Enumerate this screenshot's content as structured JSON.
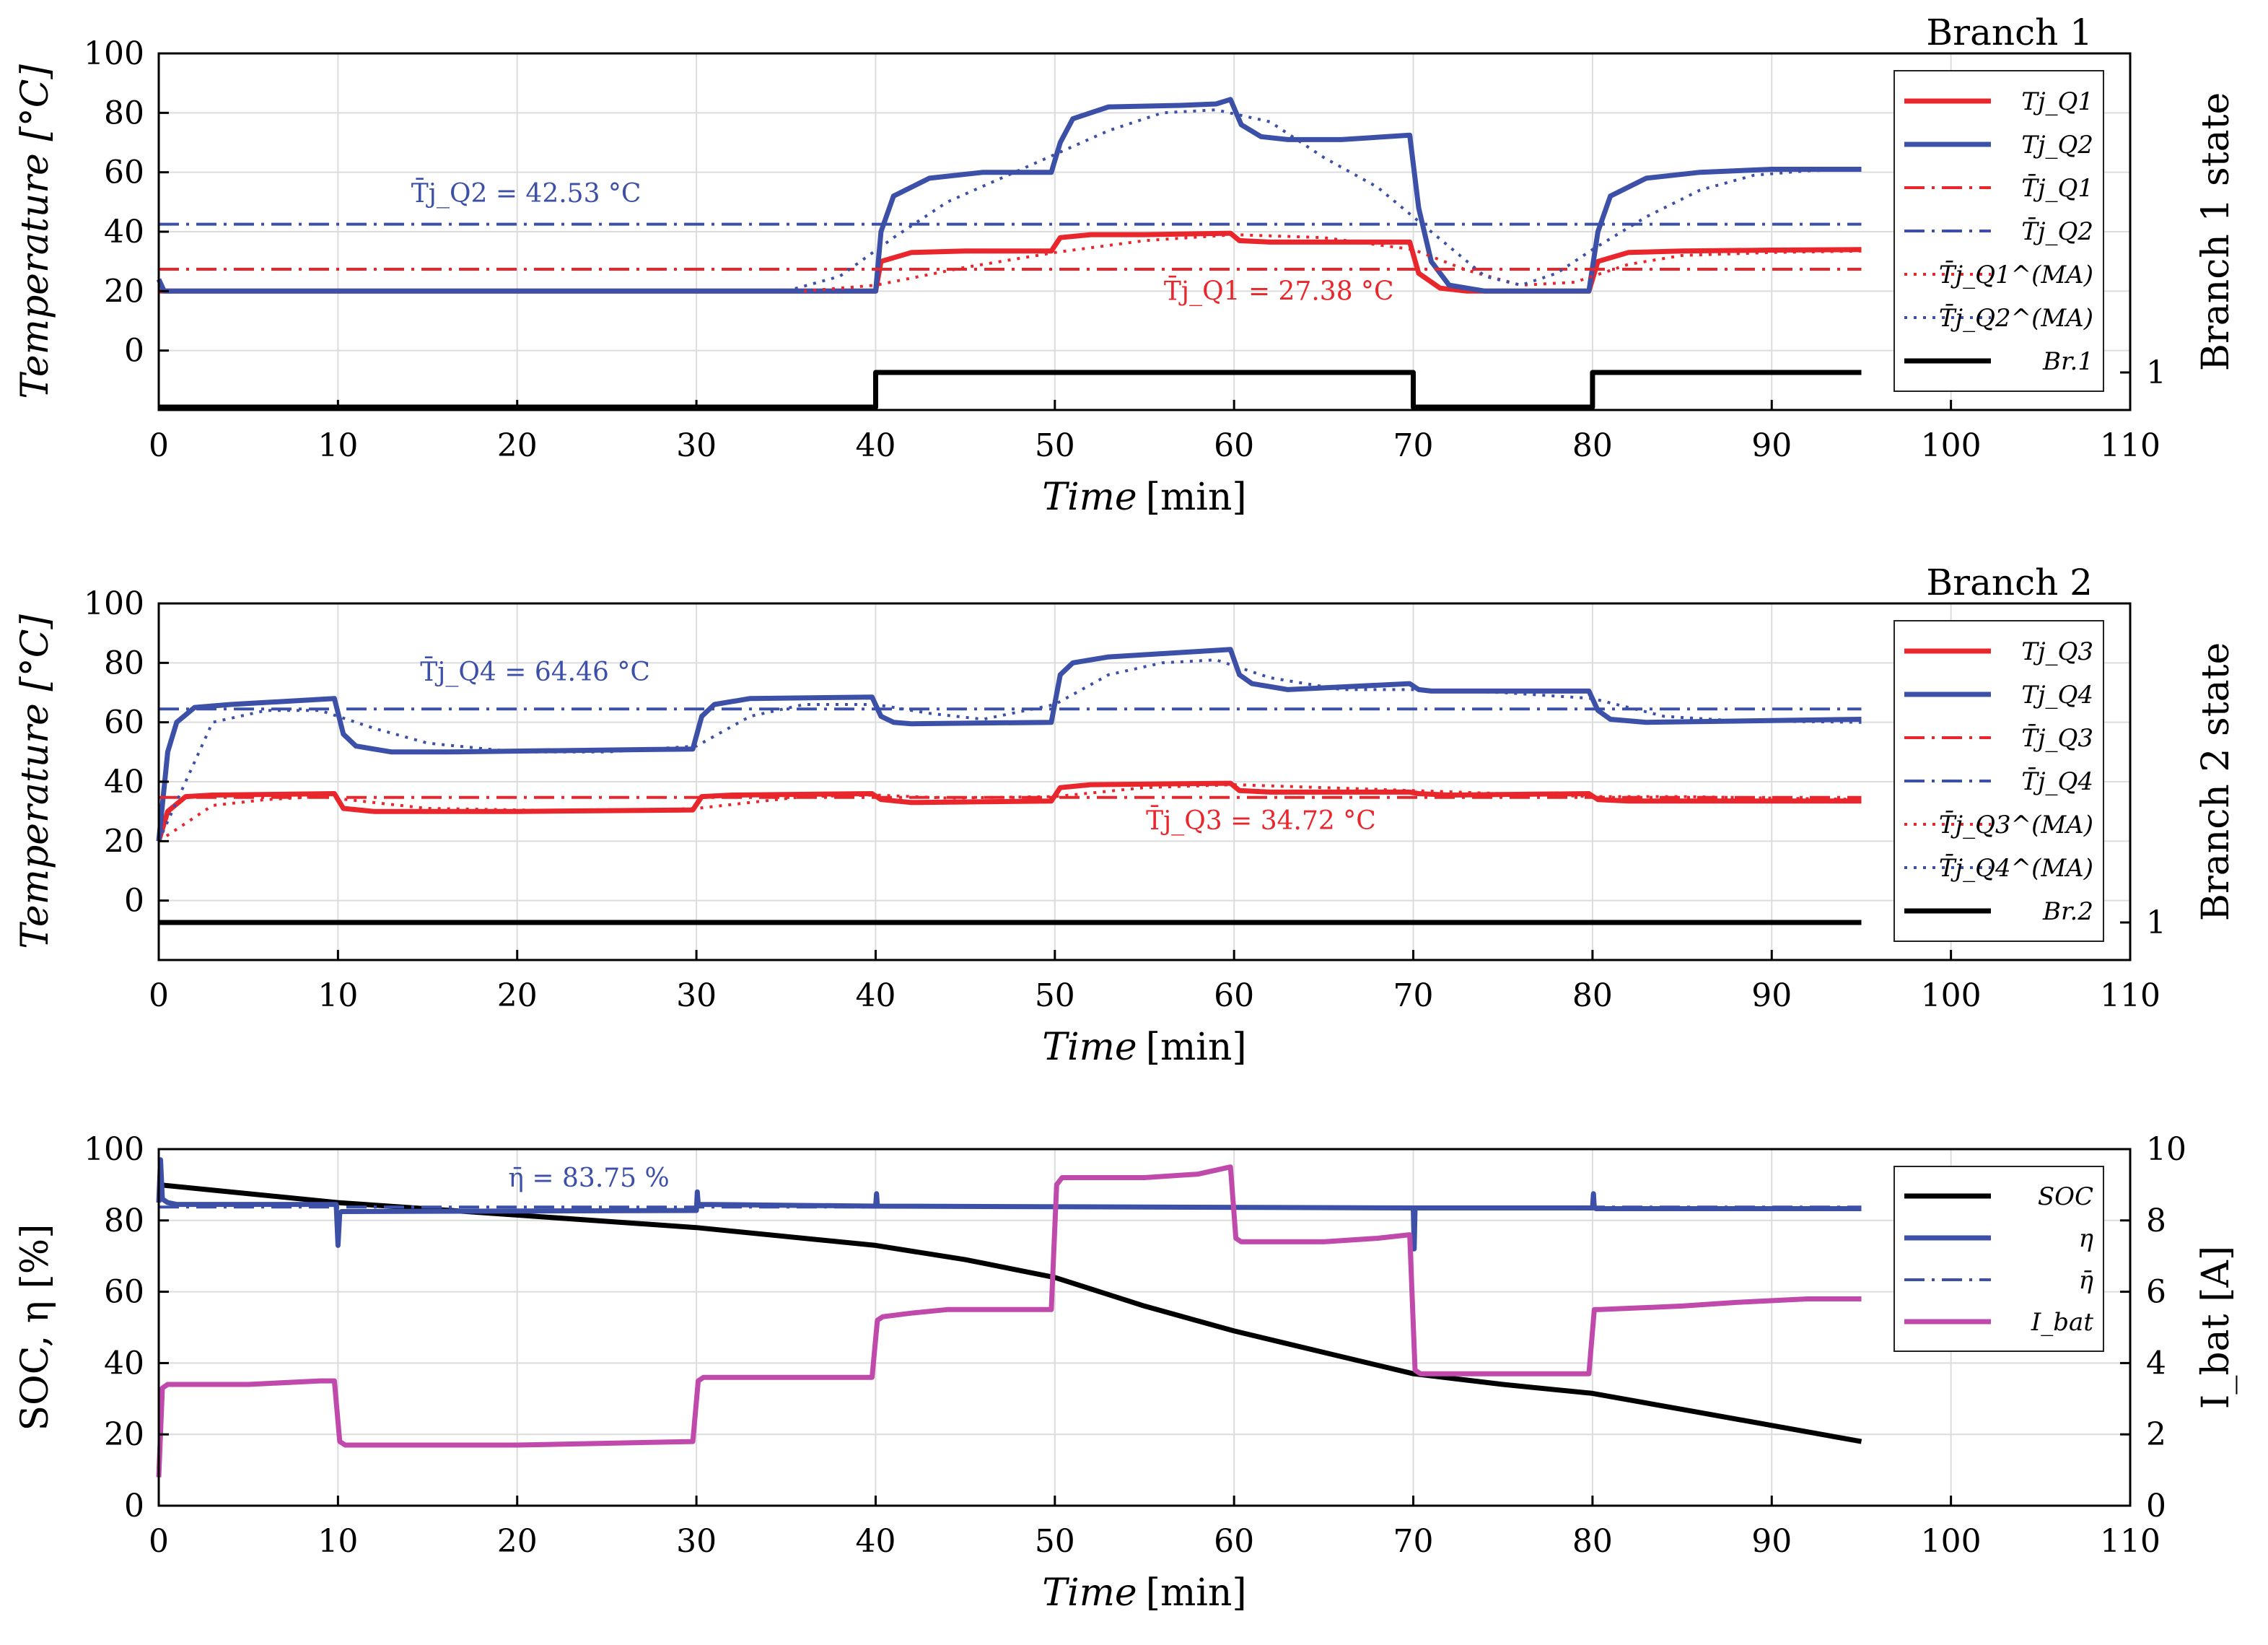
{
  "colors": {
    "red": "#e8262b",
    "blue": "#3c50a8",
    "black": "#000000",
    "magenta": "#c04aab",
    "grid": "#dcdcdc"
  },
  "chart_data": [
    {
      "type": "line",
      "title": "Branch 1",
      "xlabel": "Time",
      "xunit": "[min]",
      "ylabel": "Temperature [°C]",
      "y2label": "Branch 1 state",
      "xlim": [
        0,
        110
      ],
      "ylim": [
        -20,
        100
      ],
      "xticks": [
        0,
        10,
        20,
        30,
        40,
        50,
        60,
        70,
        80,
        90,
        100,
        110
      ],
      "yticks": [
        0,
        20,
        40,
        60,
        80,
        100
      ],
      "y2ticks": [
        "1"
      ],
      "series": [
        {
          "name": "Tj_Q1",
          "label": "Tj_Q1",
          "color": "#e8262b",
          "style": "solid",
          "x": [
            0,
            0.3,
            40,
            40.3,
            42,
            45,
            49.8,
            50.3,
            52,
            55,
            59.8,
            60.3,
            62,
            65,
            69.8,
            70.3,
            71.5,
            73,
            79.8,
            80.3,
            82,
            85,
            90,
            95
          ],
          "y": [
            20,
            20,
            20,
            30,
            33,
            33.5,
            33.5,
            38,
            39,
            39,
            39.5,
            37,
            36.5,
            36.5,
            36.5,
            26,
            21,
            20,
            20,
            30,
            33,
            33.5,
            33.8,
            34
          ]
        },
        {
          "name": "Tj_Q2",
          "label": "Tj_Q2",
          "color": "#3c50a8",
          "style": "solid",
          "x": [
            0,
            0.3,
            40,
            40.3,
            41,
            43,
            46,
            49.8,
            50.3,
            51,
            53,
            57,
            59,
            59.8,
            60.4,
            61.5,
            63,
            66,
            69.8,
            70.3,
            71,
            72,
            74,
            79.8,
            80.3,
            81,
            83,
            86,
            90,
            95
          ],
          "y": [
            24,
            20,
            20,
            40,
            52,
            58,
            60,
            60,
            70,
            78,
            82,
            82.5,
            83,
            84.5,
            76,
            72,
            71,
            71,
            72.5,
            48,
            30,
            22,
            20,
            20,
            40,
            52,
            58,
            60,
            61,
            61
          ]
        },
        {
          "name": "Tj_Q1_mean",
          "label": "T̄j_Q1",
          "color": "#e8262b",
          "style": "dashdot",
          "x": [
            0,
            95
          ],
          "y": [
            27.38,
            27.38
          ]
        },
        {
          "name": "Tj_Q2_mean",
          "label": "T̄j_Q2",
          "color": "#3c50a8",
          "style": "dashdot",
          "x": [
            0,
            95
          ],
          "y": [
            42.53,
            42.53
          ]
        },
        {
          "name": "Tj_Q1_MA",
          "label": "T̄j_Q1^(MA)",
          "color": "#e8262b",
          "style": "dotted",
          "x": [
            36,
            40,
            45,
            50,
            55,
            60,
            65,
            70,
            73,
            76,
            79,
            82,
            85,
            90,
            95
          ],
          "y": [
            20,
            22,
            28,
            33,
            37,
            39,
            38,
            34,
            27,
            22,
            23,
            29,
            32,
            33,
            33.5
          ]
        },
        {
          "name": "Tj_Q2_MA",
          "label": "T̄j_Q2^(MA)",
          "color": "#3c50a8",
          "style": "dotted",
          "x": [
            35,
            38,
            41,
            44,
            47,
            50,
            53,
            56,
            59,
            62,
            65,
            68,
            71,
            74,
            76,
            78,
            80,
            83,
            86,
            89,
            92,
            95
          ],
          "y": [
            20,
            25,
            38,
            50,
            58,
            66,
            74,
            80,
            81,
            77,
            65,
            55,
            40,
            25,
            22,
            26,
            34,
            45,
            54,
            59,
            60.5,
            61
          ]
        },
        {
          "name": "Br1",
          "label": "Br.1",
          "color": "#000000",
          "style": "solid",
          "state": true,
          "x": [
            0,
            40,
            40,
            70,
            70,
            80,
            80,
            95
          ],
          "y": [
            0,
            0,
            1,
            1,
            0,
            0,
            1,
            1
          ]
        }
      ],
      "annotations": [
        {
          "text": "T̄j_Q2 = 42.53 °C",
          "x": 20.5,
          "y": 50,
          "color": "#3c50a8"
        },
        {
          "text": "T̄j_Q1 = 27.38 °C",
          "x": 62.5,
          "y": 17,
          "color": "#e8262b"
        }
      ]
    },
    {
      "type": "line",
      "title": "Branch 2",
      "xlabel": "Time",
      "xunit": "[min]",
      "ylabel": "Temperature [°C]",
      "y2label": "Branch 2 state",
      "xlim": [
        0,
        110
      ],
      "ylim": [
        -20,
        100
      ],
      "xticks": [
        0,
        10,
        20,
        30,
        40,
        50,
        60,
        70,
        80,
        90,
        100,
        110
      ],
      "yticks": [
        0,
        20,
        40,
        60,
        80,
        100
      ],
      "y2ticks": [
        "1"
      ],
      "series": [
        {
          "name": "Tj_Q3",
          "label": "Tj_Q3",
          "color": "#e8262b",
          "style": "solid",
          "x": [
            0,
            0.5,
            1.5,
            3,
            9.8,
            10.3,
            12,
            20,
            29.8,
            30.3,
            32,
            39.8,
            40.3,
            42,
            49.8,
            50.3,
            52,
            59.8,
            60.3,
            62,
            69.8,
            70.3,
            72,
            79.8,
            80.3,
            82,
            95
          ],
          "y": [
            20,
            30,
            35,
            35.5,
            36,
            31,
            30,
            30,
            30.5,
            35,
            35.5,
            36,
            34,
            33,
            33.5,
            38,
            39,
            39.5,
            37,
            36.5,
            36.5,
            36,
            35.5,
            36,
            34,
            33.5,
            33.5
          ]
        },
        {
          "name": "Tj_Q4",
          "label": "Tj_Q4",
          "color": "#3c50a8",
          "style": "solid",
          "x": [
            0,
            0.5,
            1,
            2,
            4,
            9.8,
            10.3,
            11,
            13,
            16,
            29.8,
            30.3,
            31,
            33,
            39.8,
            40.3,
            41,
            42,
            49.8,
            50.3,
            51,
            53,
            59.8,
            60.3,
            61,
            63,
            69.8,
            70.3,
            71,
            79.8,
            80.3,
            81,
            83,
            95
          ],
          "y": [
            20,
            50,
            60,
            65,
            66,
            68,
            56,
            52,
            50,
            50,
            51,
            62,
            66,
            68,
            68.5,
            62,
            60,
            59.5,
            60,
            76,
            80,
            82,
            84.5,
            76,
            73,
            71,
            73,
            71,
            70.5,
            70.5,
            64,
            61,
            60,
            61
          ]
        },
        {
          "name": "Tj_Q3_mean",
          "label": "T̄j_Q3",
          "color": "#e8262b",
          "style": "dashdot",
          "x": [
            0,
            95
          ],
          "y": [
            34.72,
            34.72
          ]
        },
        {
          "name": "Tj_Q4_mean",
          "label": "T̄j_Q4",
          "color": "#3c50a8",
          "style": "dashdot",
          "x": [
            0,
            95
          ],
          "y": [
            64.46,
            64.46
          ]
        },
        {
          "name": "Tj_Q3_MA",
          "label": "T̄j_Q3^(MA)",
          "color": "#e8262b",
          "style": "dotted",
          "x": [
            0,
            3,
            6,
            9,
            12,
            15,
            25,
            30,
            33,
            36,
            40,
            44,
            50,
            55,
            60,
            65,
            70,
            75,
            80,
            85,
            90,
            95
          ],
          "y": [
            20,
            32,
            34,
            35,
            33,
            31,
            30,
            31,
            33,
            35,
            35.5,
            34.5,
            35,
            38,
            39,
            38,
            37,
            36,
            35,
            35,
            34.5,
            34
          ]
        },
        {
          "name": "Tj_Q4_MA",
          "label": "T̄j_Q4^(MA)",
          "color": "#3c50a8",
          "style": "dotted",
          "x": [
            0,
            3,
            6,
            9,
            12,
            15,
            20,
            25,
            30,
            33,
            36,
            40,
            43,
            46,
            50,
            53,
            56,
            59,
            62,
            66,
            70,
            75,
            80,
            84,
            88,
            95
          ],
          "y": [
            20,
            60,
            64,
            64,
            58,
            53,
            50,
            50,
            52,
            62,
            66,
            66,
            63,
            61,
            66,
            76,
            80,
            81,
            75,
            71,
            71,
            70,
            68,
            62,
            60.5,
            60
          ]
        },
        {
          "name": "Br2",
          "label": "Br.2",
          "color": "#000000",
          "style": "solid",
          "state": true,
          "x": [
            0,
            95
          ],
          "y": [
            1,
            1
          ]
        }
      ],
      "annotations": [
        {
          "text": "T̄j_Q4 = 64.46 °C",
          "x": 21,
          "y": 74,
          "color": "#3c50a8"
        },
        {
          "text": "T̄j_Q3 = 34.72 °C",
          "x": 61.5,
          "y": 24,
          "color": "#e8262b"
        }
      ]
    },
    {
      "type": "line",
      "title": "",
      "xlabel": "Time",
      "xunit": "[min]",
      "ylabel": "SOC, η [%]",
      "y2label": "I_bat [A]",
      "xlim": [
        0,
        110
      ],
      "ylim": [
        0,
        100
      ],
      "y2lim": [
        0,
        10
      ],
      "xticks": [
        0,
        10,
        20,
        30,
        40,
        50,
        60,
        70,
        80,
        90,
        100,
        110
      ],
      "yticks": [
        0,
        20,
        40,
        60,
        80,
        100
      ],
      "y2ticks": [
        0,
        2,
        4,
        6,
        8,
        10
      ],
      "series": [
        {
          "name": "SOC",
          "label": "SOC",
          "color": "#000000",
          "style": "solid",
          "axis": "left",
          "x": [
            0,
            10,
            20,
            30,
            40,
            45,
            50,
            55,
            60,
            65,
            70,
            75,
            80,
            85,
            90,
            95
          ],
          "y": [
            90,
            85,
            81.5,
            78,
            73,
            69,
            64,
            56,
            49,
            43,
            37,
            34,
            31.5,
            27,
            22.5,
            18
          ]
        },
        {
          "name": "eta",
          "label": "η",
          "color": "#3c50a8",
          "style": "solid",
          "axis": "left",
          "x": [
            0,
            0.1,
            0.2,
            0.5,
            1,
            9.9,
            10,
            10.1,
            10.2,
            30,
            30.05,
            30.1,
            30.2,
            40,
            40.05,
            40.1,
            40.2,
            70,
            70.05,
            70.1,
            70.2,
            80,
            80.05,
            80.1,
            80.2,
            95
          ],
          "y": [
            85,
            97,
            86,
            85,
            84.5,
            84.5,
            73,
            82,
            82.5,
            82.8,
            88,
            84.5,
            84.5,
            84,
            87.5,
            84,
            84,
            83.5,
            72,
            83.5,
            83.5,
            83.5,
            87.5,
            83.5,
            83.3,
            83.3
          ]
        },
        {
          "name": "eta_mean",
          "label": "η̄",
          "color": "#3c50a8",
          "style": "dashdot",
          "axis": "left",
          "x": [
            0,
            95
          ],
          "y": [
            83.75,
            83.75
          ]
        },
        {
          "name": "I_bat",
          "label": "I_bat",
          "color": "#c04aab",
          "style": "solid",
          "axis": "right",
          "x": [
            0,
            0.2,
            0.5,
            5,
            9,
            9.8,
            10.1,
            10.4,
            20,
            29.8,
            30.1,
            30.4,
            39.8,
            40.1,
            40.4,
            42,
            44,
            49.8,
            50.1,
            50.4,
            55,
            58,
            59.8,
            60.1,
            60.4,
            65,
            68,
            69.8,
            70.1,
            70.4,
            79.8,
            80.1,
            80.4,
            85,
            88,
            92,
            95
          ],
          "y": [
            0.8,
            3.3,
            3.4,
            3.4,
            3.5,
            3.5,
            1.8,
            1.7,
            1.7,
            1.8,
            3.5,
            3.6,
            3.6,
            5.2,
            5.3,
            5.4,
            5.5,
            5.5,
            9.0,
            9.2,
            9.2,
            9.3,
            9.5,
            7.5,
            7.4,
            7.4,
            7.5,
            7.6,
            3.8,
            3.7,
            3.7,
            5.5,
            5.5,
            5.6,
            5.7,
            5.8,
            5.8
          ]
        }
      ],
      "annotations": [
        {
          "text": "η̄ = 83.75 %",
          "x": 24,
          "y": 89.5,
          "color": "#3c50a8"
        }
      ]
    }
  ],
  "legend_labels": [
    [
      "Tj_Q1",
      "Tj_Q2",
      "T̄j_Q1",
      "T̄j_Q2",
      "T̄j_Q1^(MA)",
      "T̄j_Q2^(MA)",
      "Br.1"
    ],
    [
      "Tj_Q3",
      "Tj_Q4",
      "T̄j_Q3",
      "T̄j_Q4",
      "T̄j_Q3^(MA)",
      "T̄j_Q4^(MA)",
      "Br.2"
    ],
    [
      "SOC",
      "η",
      "η̄",
      "I_bat"
    ]
  ]
}
